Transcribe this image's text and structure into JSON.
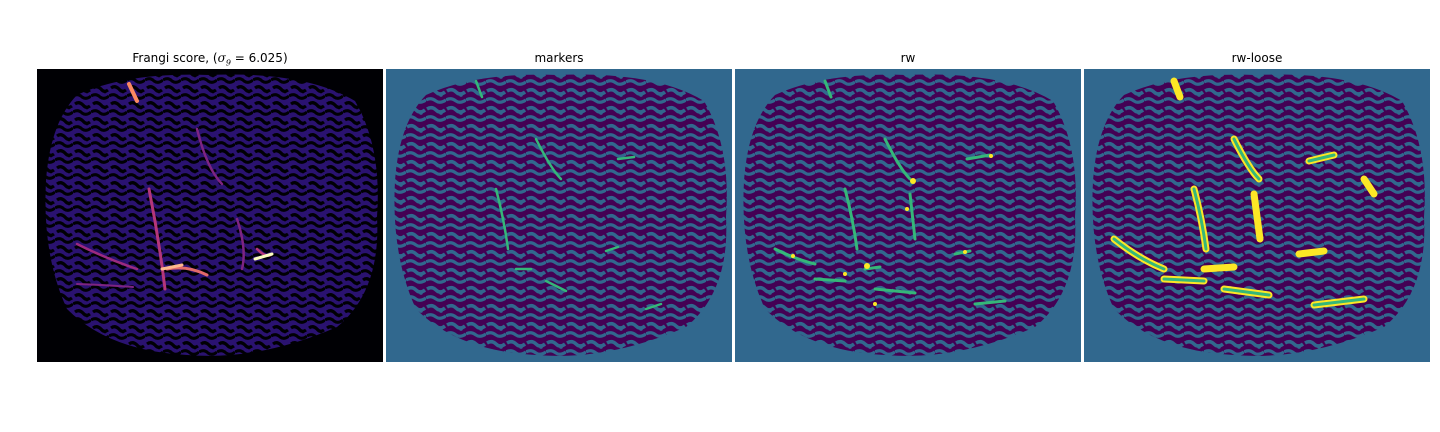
{
  "panels": [
    {
      "title": "Frangi score, (σ₉ = 6.025)",
      "title_prefix": "Frangi score, (",
      "sigma_sub": "9",
      "sigma_value": " = 6.025)",
      "colormap": "magma"
    },
    {
      "title": "markers",
      "colormap": "viridis"
    },
    {
      "title": "rw",
      "colormap": "viridis"
    },
    {
      "title": "rw-loose",
      "colormap": "viridis"
    }
  ],
  "colors": {
    "magma_bg": "#000004",
    "magma_mid": "#2c1185",
    "magma_hi": "#b5367a",
    "magma_peak": "#fcfdbf",
    "viridis_bg": "#31688e",
    "viridis_low": "#440154",
    "viridis_mid": "#35b779",
    "viridis_peak": "#fde725"
  }
}
